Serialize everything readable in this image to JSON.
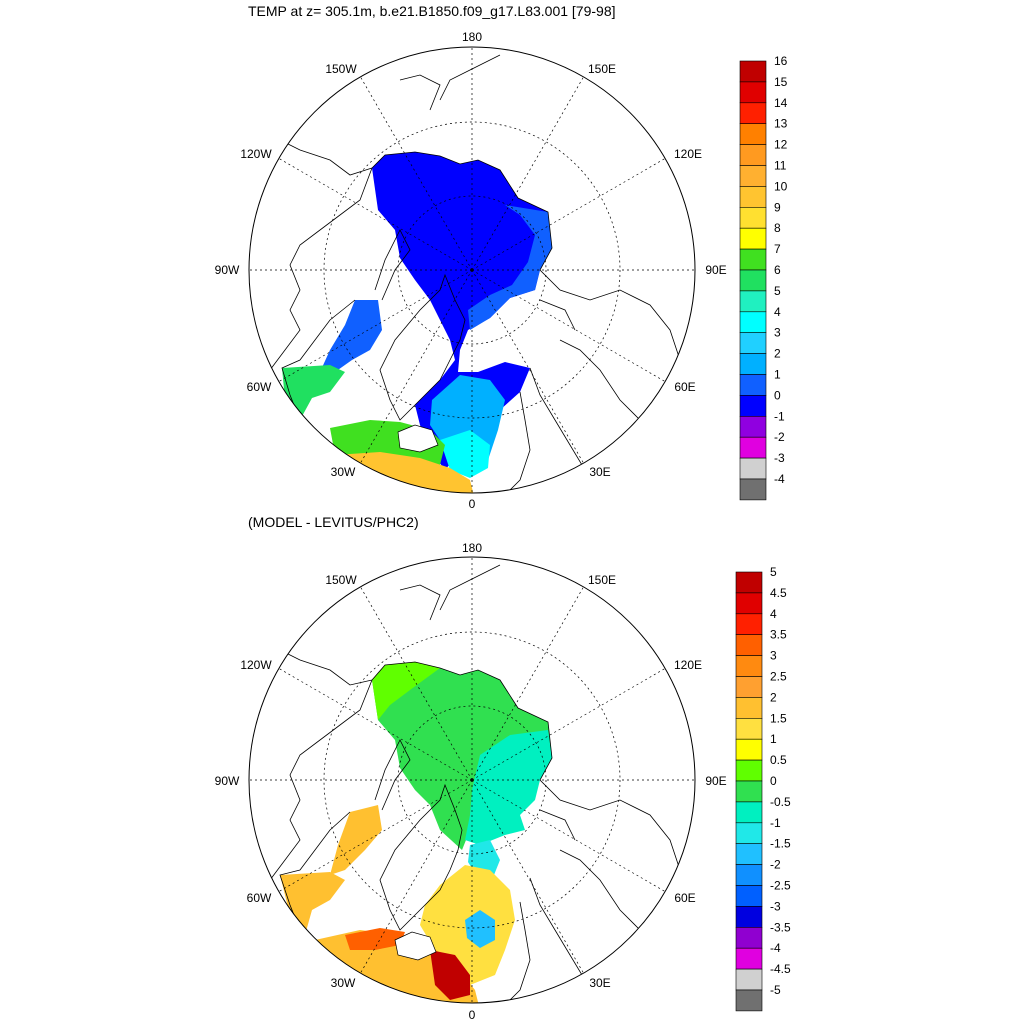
{
  "panels": [
    {
      "title": "TEMP at z= 305.1m, b.e21.B1850.f09_g17.L83.001 [79-98]",
      "lon_labels": [
        "180",
        "150E",
        "120E",
        "90E",
        "60E",
        "30E",
        "0",
        "30W",
        "60W",
        "90W",
        "120W",
        "150W"
      ],
      "colorbar": {
        "labels": [
          "16",
          "15",
          "14",
          "13",
          "12",
          "11",
          "10",
          "9",
          "8",
          "7",
          "6",
          "5",
          "4",
          "3",
          "2",
          "1",
          "0",
          "-1",
          "-2",
          "-3",
          "-4"
        ],
        "colors": [
          "#c00000",
          "#e00000",
          "#ff2000",
          "#ff8000",
          "#ff9a20",
          "#ffb030",
          "#ffc430",
          "#ffe030",
          "#ffff00",
          "#40e020",
          "#20e060",
          "#20f0c0",
          "#00ffff",
          "#20d0ff",
          "#00b0ff",
          "#1060ff",
          "#0000ff",
          "#9000e0",
          "#e000e0",
          "#d0d0d0",
          "#707070"
        ]
      }
    },
    {
      "title": "(MODEL - LEVITUS/PHC2)",
      "lon_labels": [
        "180",
        "150E",
        "120E",
        "90E",
        "60E",
        "30E",
        "0",
        "30W",
        "60W",
        "90W",
        "120W",
        "150W"
      ],
      "colorbar": {
        "labels": [
          "5",
          "4.5",
          "4",
          "3.5",
          "3",
          "2.5",
          "2",
          "1.5",
          "1",
          "0.5",
          "0",
          "-0.5",
          "-1",
          "-1.5",
          "-2",
          "-2.5",
          "-3",
          "-3.5",
          "-4",
          "-4.5",
          "-5"
        ],
        "colors": [
          "#c00000",
          "#e00000",
          "#ff2000",
          "#ff6000",
          "#ff8a10",
          "#ffa030",
          "#ffc030",
          "#ffe040",
          "#ffff00",
          "#60ff00",
          "#30e050",
          "#00f0c0",
          "#20e8e8",
          "#20c0ff",
          "#1090ff",
          "#0060ff",
          "#0000e0",
          "#9000d0",
          "#e000e0",
          "#d0d0d0",
          "#707070"
        ]
      }
    }
  ]
}
